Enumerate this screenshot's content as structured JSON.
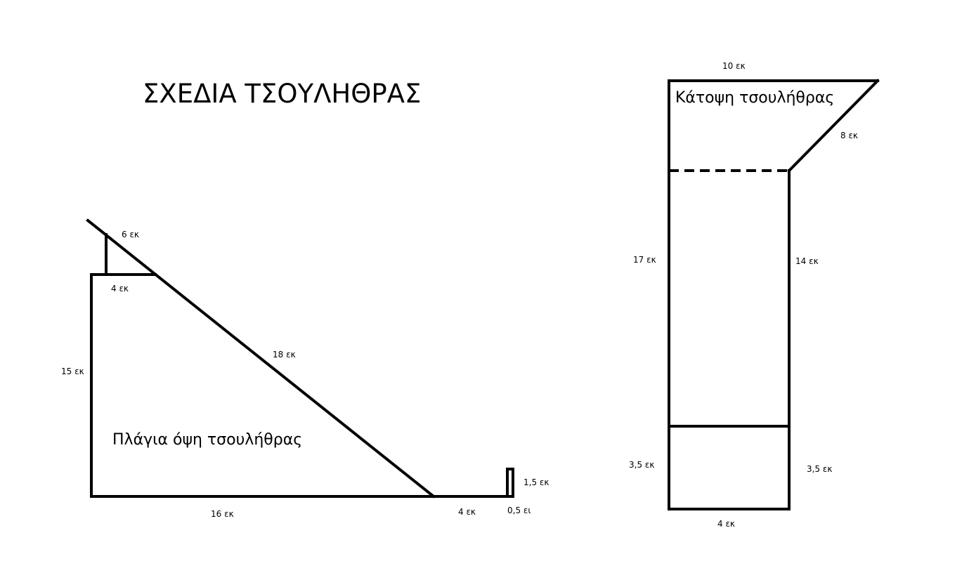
{
  "title": "ΣΧΕΔΙΑ ΤΣΟΥΛΗΘΡΑΣ",
  "side_view": {
    "label": "Πλάγια όψη τσουλήθρας",
    "dims": {
      "top": "6 εκ",
      "step": "4 εκ",
      "slide": "18 εκ",
      "height": "15 εκ",
      "base": "16 εκ",
      "run": "4 εκ",
      "lip_height": "1,5 εκ",
      "lip_width": "0,5 ει"
    }
  },
  "plan_view": {
    "label": "Κάτοψη τσουλήθρας",
    "dims": {
      "top": "10 εκ",
      "diagonal": "8 εκ",
      "left": "17 εκ",
      "right": "14 εκ",
      "left_bottom": "3,5 εκ",
      "right_bottom": "3,5 εκ",
      "bottom": "4 εκ"
    }
  },
  "colors": {
    "line": "#000000",
    "background": "#ffffff"
  }
}
